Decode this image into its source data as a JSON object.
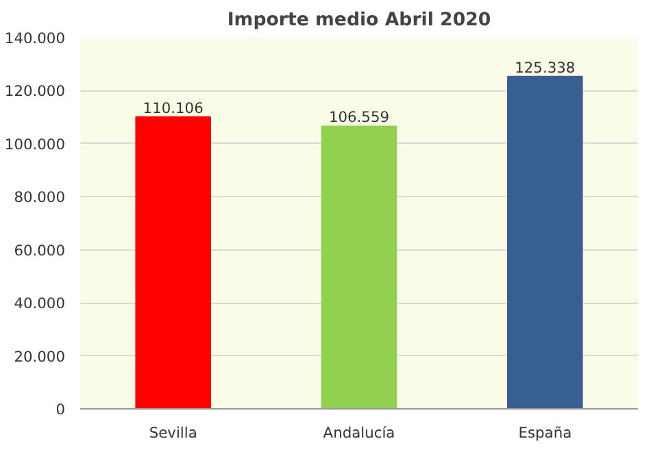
{
  "chart_data": {
    "type": "bar",
    "title": "Importe medio Abril 2020",
    "categories": [
      "Sevilla",
      "Andalucía",
      "España"
    ],
    "values": [
      110106,
      106559,
      125338
    ],
    "colors": [
      "#ff0000",
      "#92d050",
      "#375f92"
    ],
    "value_labels": [
      "110.106",
      "106.559",
      "125.338"
    ],
    "ylim": [
      0,
      140000
    ],
    "yticks": [
      0,
      {
        "value": 20000,
        "label": "20.000"
      },
      {
        "value": 40000,
        "label": "40.000"
      },
      {
        "value": 60000,
        "label": "60.000"
      },
      {
        "value": 80000,
        "label": "80.000"
      },
      {
        "value": 100000,
        "label": "100.000"
      },
      {
        "value": 120000,
        "label": "120.000"
      },
      {
        "value": 140000,
        "label": "140.000"
      }
    ],
    "grid": "y"
  }
}
